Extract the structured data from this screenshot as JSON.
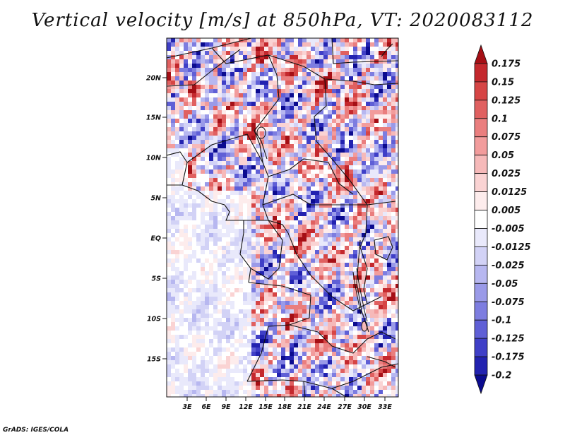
{
  "title": "Vertical velocity [m/s] at 850hPa, VT: 2020083112",
  "credit": "GrADS: IGES/COLA",
  "map": {
    "lat_ticks": [
      "20N",
      "15N",
      "10N",
      "5N",
      "EQ",
      "5S",
      "10S",
      "15S"
    ],
    "lon_ticks": [
      "3E",
      "6E",
      "9E",
      "12E",
      "15E",
      "18E",
      "21E",
      "24E",
      "27E",
      "30E",
      "33E"
    ]
  },
  "colorbar": {
    "labels": [
      "0.175",
      "0.15",
      "0.125",
      "0.1",
      "0.075",
      "0.05",
      "0.025",
      "0.0125",
      "0.005",
      "-0.005",
      "-0.0125",
      "-0.025",
      "-0.05",
      "-0.075",
      "-0.1",
      "-0.125",
      "-0.175",
      "-0.2"
    ],
    "colors": [
      "#a50f15",
      "#c4282d",
      "#d64545",
      "#e06060",
      "#ea7e7e",
      "#f29c9c",
      "#f6b9b9",
      "#fad3d3",
      "#fdecec",
      "#ffffff",
      "#e9e9fb",
      "#d2d2f6",
      "#b7b7f0",
      "#9a9ae8",
      "#7d7de0",
      "#5f5fd6",
      "#3f3fc7",
      "#2222b0",
      "#0b0b8f"
    ]
  }
}
